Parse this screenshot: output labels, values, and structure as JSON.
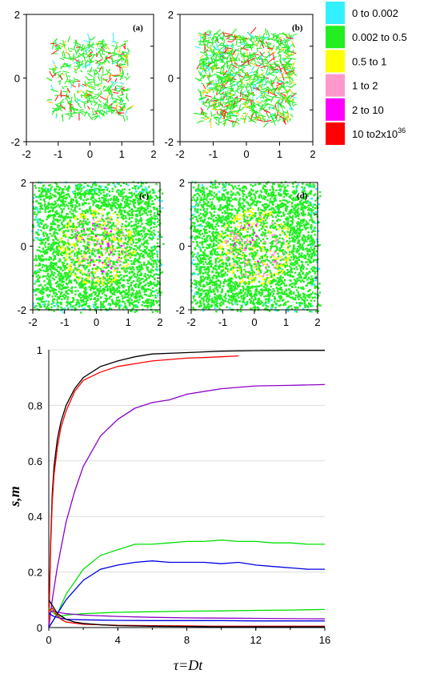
{
  "chart_data": [
    {
      "type": "scatter",
      "panel_label": "(a)",
      "xlim": [
        -2,
        2
      ],
      "ylim": [
        -2,
        2
      ],
      "x_ticks": [
        "-2",
        "-1",
        "0",
        "1",
        "2"
      ],
      "y_ticks": [
        "2",
        "0",
        "-2"
      ],
      "extent": [
        -1.2,
        1.2
      ],
      "density": "sparse network"
    },
    {
      "type": "scatter",
      "panel_label": "(b)",
      "xlim": [
        -2,
        2
      ],
      "ylim": [
        -2,
        2
      ],
      "x_ticks": [
        "-2",
        "-1",
        "0",
        "1",
        "2"
      ],
      "y_ticks": [
        "2",
        "0",
        "-2"
      ],
      "extent": [
        -1.4,
        1.4
      ],
      "density": "dense network"
    },
    {
      "type": "scatter",
      "panel_label": "(c)",
      "xlim": [
        -2,
        2
      ],
      "ylim": [
        -2,
        2
      ],
      "x_ticks": [
        "-2",
        "-1",
        "0",
        "1",
        "2"
      ],
      "y_ticks": [
        "2",
        "0",
        "-2"
      ],
      "extent": [
        -1.9,
        1.9
      ],
      "density": "filled"
    },
    {
      "type": "scatter",
      "panel_label": "(d)",
      "xlim": [
        -2,
        2
      ],
      "ylim": [
        -2,
        2
      ],
      "x_ticks": [
        "-2",
        "-1",
        "0",
        "1",
        "2"
      ],
      "y_ticks": [
        "2",
        "0",
        "-2"
      ],
      "extent": [
        -1.9,
        1.9
      ],
      "density": "filled"
    },
    {
      "type": "line",
      "xlabel": "τ=Dt",
      "ylabel": "s,m",
      "xlim": [
        0,
        16
      ],
      "ylim": [
        0,
        1
      ],
      "x_ticks": [
        "0",
        "4",
        "8",
        "12",
        "16"
      ],
      "y_ticks": [
        "0",
        "0.2",
        "0.4",
        "0.6",
        "0.8",
        "1"
      ],
      "series": [
        {
          "color": "#000000",
          "x": [
            0,
            0.1,
            0.2,
            0.3,
            0.5,
            0.7,
            1,
            1.5,
            2,
            3,
            4,
            5,
            6,
            8,
            10,
            12,
            14,
            16
          ],
          "y": [
            0,
            0.3,
            0.48,
            0.58,
            0.68,
            0.74,
            0.8,
            0.86,
            0.9,
            0.94,
            0.96,
            0.975,
            0.985,
            0.99,
            0.995,
            0.997,
            0.998,
            0.998
          ]
        },
        {
          "color": "#ff0000",
          "x": [
            0,
            0.1,
            0.2,
            0.3,
            0.5,
            0.7,
            1,
            1.5,
            2,
            3,
            4,
            5,
            6,
            7,
            8,
            9,
            10,
            11
          ],
          "y": [
            0,
            0.28,
            0.45,
            0.55,
            0.65,
            0.72,
            0.78,
            0.85,
            0.89,
            0.92,
            0.94,
            0.95,
            0.96,
            0.965,
            0.97,
            0.972,
            0.975,
            0.978
          ]
        },
        {
          "color": "#8b00c8",
          "x": [
            0,
            0.2,
            0.5,
            1,
            1.5,
            2,
            3,
            4,
            5,
            6,
            7,
            8,
            10,
            12,
            14,
            16
          ],
          "y": [
            0,
            0.1,
            0.22,
            0.38,
            0.49,
            0.58,
            0.69,
            0.75,
            0.79,
            0.81,
            0.82,
            0.84,
            0.86,
            0.87,
            0.872,
            0.875
          ]
        },
        {
          "color": "#00e000",
          "x": [
            0,
            0.5,
            1,
            2,
            3,
            4,
            5,
            6,
            7,
            8,
            9,
            10,
            11,
            12,
            13,
            14,
            15,
            16
          ],
          "y": [
            0,
            0.05,
            0.12,
            0.21,
            0.26,
            0.28,
            0.3,
            0.3,
            0.305,
            0.31,
            0.31,
            0.315,
            0.31,
            0.31,
            0.305,
            0.305,
            0.3,
            0.3
          ]
        },
        {
          "color": "#0000e0",
          "x": [
            0,
            0.5,
            1,
            2,
            3,
            4,
            5,
            6,
            7,
            8,
            9,
            10,
            11,
            12,
            13,
            14,
            15,
            16
          ],
          "y": [
            0,
            0.05,
            0.1,
            0.17,
            0.21,
            0.225,
            0.235,
            0.24,
            0.235,
            0.235,
            0.235,
            0.23,
            0.235,
            0.225,
            0.22,
            0.215,
            0.21,
            0.21
          ]
        },
        {
          "color": "#00e000",
          "x": [
            0,
            0.3,
            0.6,
            1,
            2,
            4,
            6,
            8,
            10,
            12,
            14,
            16
          ],
          "y": [
            0.07,
            0.05,
            0.04,
            0.045,
            0.05,
            0.055,
            0.057,
            0.059,
            0.06,
            0.062,
            0.063,
            0.065
          ]
        },
        {
          "color": "#8b00c8",
          "x": [
            0,
            0.2,
            0.5,
            1,
            2,
            4,
            6,
            8,
            10,
            12,
            14,
            16
          ],
          "y": [
            0.05,
            0.06,
            0.055,
            0.05,
            0.045,
            0.04,
            0.037,
            0.035,
            0.034,
            0.033,
            0.032,
            0.031
          ]
        },
        {
          "color": "#0000e0",
          "x": [
            0,
            0.3,
            0.6,
            1,
            2,
            4,
            6,
            8,
            10,
            12,
            14,
            16
          ],
          "y": [
            0.05,
            0.04,
            0.035,
            0.03,
            0.028,
            0.026,
            0.025,
            0.025,
            0.025,
            0.024,
            0.024,
            0.024
          ]
        },
        {
          "color": "#ff0000",
          "x": [
            0,
            0.2,
            0.4,
            0.7,
            1,
            2,
            4,
            6,
            8,
            10,
            12,
            14,
            16
          ],
          "y": [
            0.06,
            0.07,
            0.05,
            0.03,
            0.02,
            0.012,
            0.008,
            0.007,
            0.006,
            0.005,
            0.005,
            0.005,
            0.005
          ]
        },
        {
          "color": "#000000",
          "x": [
            0,
            0.2,
            0.5,
            1,
            1.5,
            2,
            3,
            4,
            6,
            8,
            10,
            12,
            14,
            16
          ],
          "y": [
            0.1,
            0.08,
            0.05,
            0.03,
            0.02,
            0.015,
            0.01,
            0.007,
            0.005,
            0.004,
            0.003,
            0.003,
            0.003,
            0.003
          ]
        }
      ]
    }
  ],
  "legend": [
    {
      "label": "0  to  0.002",
      "color": "#33f0ff"
    },
    {
      "label": "0.002  to  0.5",
      "color": "#22ee22"
    },
    {
      "label": "0.5  to  1",
      "color": "#ffff00"
    },
    {
      "label": "1  to  2",
      "color": "#ff99cc"
    },
    {
      "label": "2  to  10",
      "color": "#ff00ff"
    },
    {
      "label": "10  to2x10",
      "sup": "36",
      "color": "#ff0000"
    }
  ]
}
